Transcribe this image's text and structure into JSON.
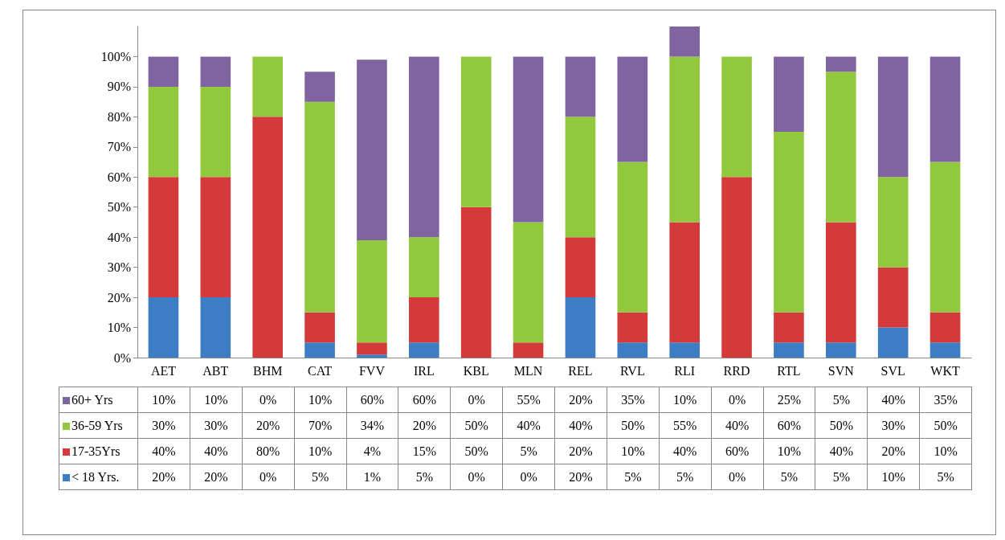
{
  "chart_data": {
    "type": "bar",
    "stacked": true,
    "categories": [
      "AET",
      "ABT",
      "BHM",
      "CAT",
      "FVV",
      "IRL",
      "KBL",
      "MLN",
      "REL",
      "RVL",
      "RLI",
      "RRD",
      "RTL",
      "SVN",
      "SVL",
      "WKT"
    ],
    "series": [
      {
        "name": "< 18 Yrs.",
        "color": "#3c7dc4",
        "values": [
          20,
          20,
          0,
          5,
          1,
          5,
          0,
          0,
          20,
          5,
          5,
          0,
          5,
          5,
          10,
          5
        ],
        "value_labels": [
          "20%",
          "20%",
          "0%",
          "5%",
          "1%",
          "5%",
          "0%",
          "0%",
          "20%",
          "5%",
          "5%",
          "0%",
          "5%",
          "5%",
          "10%",
          "5%"
        ]
      },
      {
        "name": "17-35Yrs",
        "color": "#d43a3a",
        "values": [
          40,
          40,
          80,
          10,
          4,
          15,
          50,
          5,
          20,
          10,
          40,
          60,
          10,
          40,
          20,
          10
        ],
        "value_labels": [
          "40%",
          "40%",
          "80%",
          "10%",
          "4%",
          "15%",
          "50%",
          "5%",
          "20%",
          "10%",
          "40%",
          "60%",
          "10%",
          "40%",
          "20%",
          "10%"
        ]
      },
      {
        "name": "36-59 Yrs",
        "color": "#92c83e",
        "values": [
          30,
          30,
          20,
          70,
          34,
          20,
          50,
          40,
          40,
          50,
          55,
          40,
          60,
          50,
          30,
          50
        ],
        "value_labels": [
          "30%",
          "30%",
          "20%",
          "70%",
          "34%",
          "20%",
          "50%",
          "40%",
          "40%",
          "50%",
          "55%",
          "40%",
          "60%",
          "50%",
          "30%",
          "50%"
        ]
      },
      {
        "name": "60+ Yrs",
        "color": "#8064a2",
        "values": [
          10,
          10,
          0,
          10,
          60,
          60,
          0,
          55,
          20,
          35,
          10,
          0,
          25,
          5,
          40,
          35
        ],
        "value_labels": [
          "10%",
          "10%",
          "0%",
          "10%",
          "60%",
          "60%",
          "0%",
          "55%",
          "20%",
          "35%",
          "10%",
          "0%",
          "25%",
          "5%",
          "40%",
          "35%"
        ]
      }
    ],
    "ylim": [
      0,
      110
    ],
    "yticks": [
      {
        "value": 0,
        "label": "0%"
      },
      {
        "value": 10,
        "label": "10%"
      },
      {
        "value": 20,
        "label": "20%"
      },
      {
        "value": 30,
        "label": "30%"
      },
      {
        "value": 40,
        "label": "40%"
      },
      {
        "value": 50,
        "label": "50%"
      },
      {
        "value": 60,
        "label": "60%"
      },
      {
        "value": 70,
        "label": "70%"
      },
      {
        "value": 80,
        "label": "80%"
      },
      {
        "value": 90,
        "label": "90%"
      },
      {
        "value": 100,
        "label": "100%"
      }
    ],
    "legend": "bottom left"
  }
}
